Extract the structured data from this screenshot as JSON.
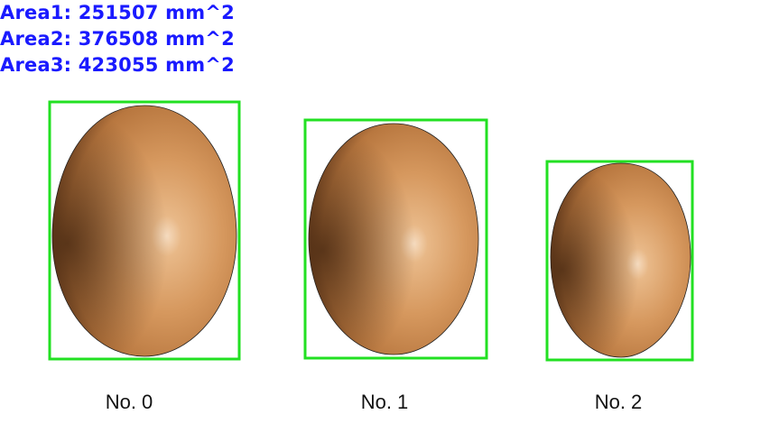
{
  "areas": {
    "color": "#1a1aff",
    "lines": [
      "Area1: 251507 mm^2",
      "Area2: 376508 mm^2",
      "Area3: 423055 mm^2"
    ]
  },
  "eggs": [
    {
      "label": "No. 0"
    },
    {
      "label": "No. 1"
    },
    {
      "label": "No. 2"
    }
  ],
  "style": {
    "box_color": "#22e022",
    "egg_shell": "#c8864c",
    "egg_shadow": "#6a3c1c"
  }
}
